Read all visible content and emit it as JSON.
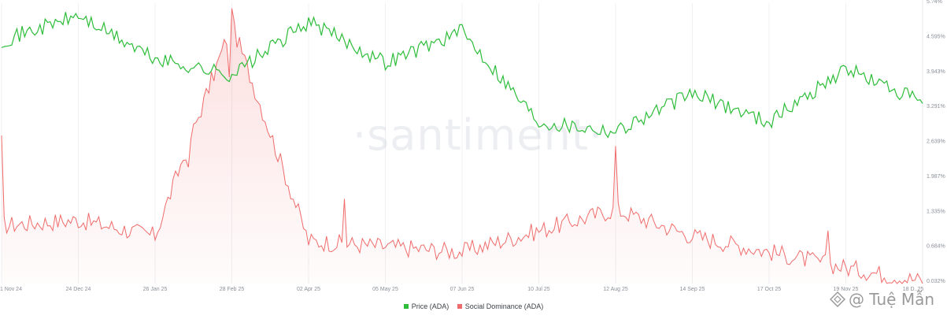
{
  "watermark": "·santiment·",
  "credit": "@ Tuệ Mẫn",
  "chart_data": {
    "type": "line",
    "x": [
      "21 Nov 24",
      "24 Dec 24",
      "26 Jan 25",
      "28 Feb 25",
      "02 Apr 25",
      "05 May 25",
      "07 Jun 25",
      "10 Jul 25",
      "12 Aug 25",
      "14 Sep 25",
      "17 Oct 25",
      "19 Nov 25",
      "18 Dec 25"
    ],
    "x_tick_labels": [
      "21 Nov 24",
      "24 Dec 24",
      "26 Jan 25",
      "28 Feb 25",
      "02 Apr 25",
      "05 May 25",
      "07 Jun 25",
      "10 Jul 25",
      "12 Aug 25",
      "14 Sep 25",
      "17 Oct 25",
      "19 Nov 25",
      "18 D..25"
    ],
    "y_right_tick_labels": [
      "5.?4%",
      "4.595%",
      "3.943%",
      "3.291%",
      "2.639%",
      "1.987%",
      "1.335%",
      "0.684%",
      "0.032%"
    ],
    "legend_position": "bottom-center",
    "grid": "vertical",
    "series": [
      {
        "name": "Price (ADA)",
        "color": "#2dbd3a",
        "values": [
          0.98,
          1.06,
          0.92,
          0.87,
          1.04,
          0.91,
          1.01,
          0.72,
          0.69,
          0.81,
          0.72,
          0.89,
          0.78
        ]
      },
      {
        "name": "Social Dominance (ADA)",
        "color": "#f06b6b",
        "values": [
          1.1,
          1.2,
          0.9,
          4.9,
          0.8,
          0.7,
          0.6,
          1.0,
          1.4,
          0.9,
          0.6,
          0.3,
          0.05
        ]
      }
    ]
  }
}
